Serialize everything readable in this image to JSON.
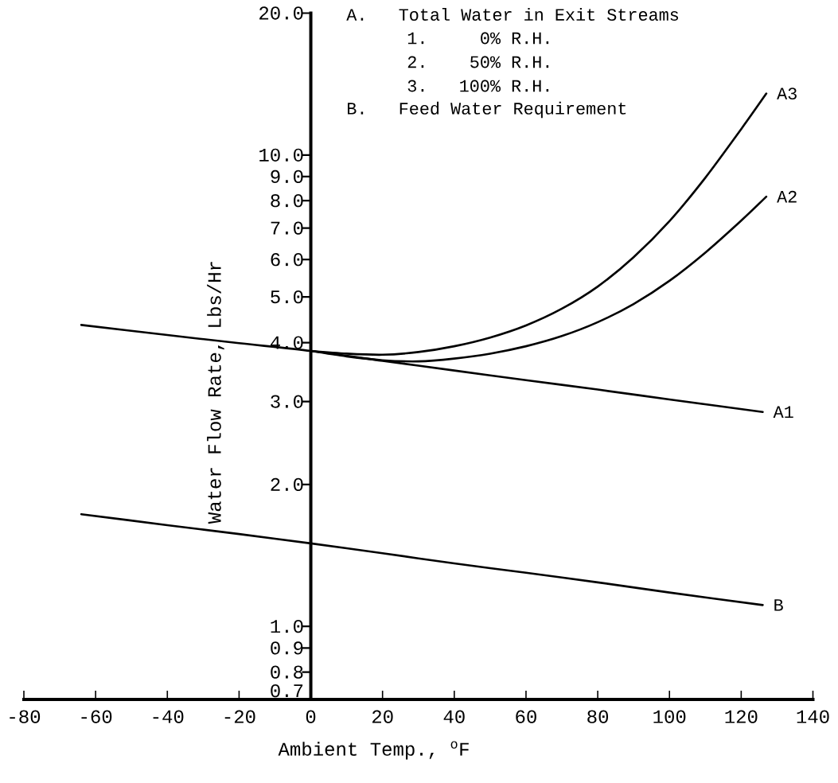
{
  "chart_data": {
    "type": "line",
    "xlabel": "Ambient Temp., $^{o}$F",
    "ylabel": "Water Flow Rate, Lbs/Hr",
    "annotations": [
      "A.   Total Water in Exit Streams",
      "1.     0% R.H.",
      "2.    50% R.H.",
      "3.   100% R.H.",
      "B.   Feed Water Requirement"
    ],
    "log": "y",
    "xlim": [
      -80,
      140
    ],
    "ylim": [
      0.7,
      20
    ],
    "xticks": [
      -80,
      -60,
      -40,
      -20,
      0,
      20,
      40,
      60,
      80,
      100,
      120,
      140
    ],
    "yticks": [
      0.7,
      0.8,
      0.9,
      {
        "value": 1,
        "label": "1.0"
      },
      {
        "value": 2,
        "label": "2.0"
      },
      {
        "value": 3,
        "label": "3.0"
      },
      {
        "value": 4,
        "label": "4.0"
      },
      {
        "value": 5,
        "label": "5.0"
      },
      {
        "value": 6,
        "label": "6.0"
      },
      {
        "value": 7,
        "label": "7.0"
      },
      {
        "value": 8,
        "label": "8.0"
      },
      {
        "value": 9,
        "label": "9.0"
      },
      {
        "value": 10,
        "label": "10.0"
      },
      {
        "value": 20,
        "label": "20.0"
      }
    ],
    "marker": "none",
    "line_style": "solid",
    "series": [
      {
        "name": "A1",
        "color": "#000000",
        "x": [
          -64,
          -40,
          -20,
          0,
          20,
          40,
          60,
          80,
          100,
          126
        ],
        "values": [
          4.36,
          4.15,
          3.99,
          3.84,
          3.66,
          3.49,
          3.33,
          3.18,
          3.03,
          2.85
        ]
      },
      {
        "name": "A2",
        "color": "#000000",
        "x": [
          0,
          10,
          20,
          30,
          40,
          50,
          60,
          70,
          80,
          90,
          100,
          110,
          120,
          127
        ],
        "values": [
          3.84,
          3.74,
          3.67,
          3.65,
          3.7,
          3.79,
          3.93,
          4.13,
          4.42,
          4.83,
          5.41,
          6.21,
          7.26,
          8.16
        ]
      },
      {
        "name": "A3",
        "color": "#000000",
        "x": [
          0,
          10,
          20,
          30,
          40,
          50,
          60,
          70,
          80,
          90,
          100,
          110,
          120,
          127
        ],
        "values": [
          3.84,
          3.79,
          3.77,
          3.82,
          3.93,
          4.1,
          4.35,
          4.72,
          5.26,
          6.07,
          7.24,
          8.95,
          11.35,
          13.5
        ]
      },
      {
        "name": "B",
        "color": "#000000",
        "x": [
          -64,
          -40,
          -20,
          0,
          20,
          40,
          60,
          80,
          100,
          126
        ],
        "values": [
          1.73,
          1.64,
          1.57,
          1.5,
          1.43,
          1.36,
          1.3,
          1.24,
          1.18,
          1.11
        ]
      }
    ]
  }
}
